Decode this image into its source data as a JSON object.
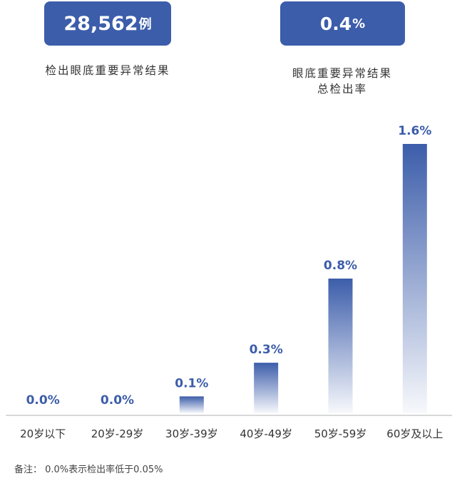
{
  "stats": {
    "left": {
      "value": "28,562",
      "unit": "例",
      "caption": "检出眼底重要异常结果"
    },
    "right": {
      "value": "0.4",
      "unit": "%",
      "caption_line1": "眼底重要异常结果",
      "caption_line2": "总检出率"
    }
  },
  "footnote": "备注： 0.0%表示检出率低于0.05%",
  "colors": {
    "accent": "#3c5daa",
    "baseline": "#cccccc"
  },
  "chart_data": {
    "type": "bar",
    "categories": [
      "20岁以下",
      "20岁-29岁",
      "30岁-39岁",
      "40岁-49岁",
      "50岁-59岁",
      "60岁及以上"
    ],
    "values": [
      0.0,
      0.0,
      0.1,
      0.3,
      0.8,
      1.6
    ],
    "value_labels": [
      "0.0%",
      "0.0%",
      "0.1%",
      "0.3%",
      "0.8%",
      "1.6%"
    ],
    "title": "",
    "xlabel": "",
    "ylabel": "",
    "ylim": [
      0,
      1.6
    ],
    "grid": false,
    "legend": "none"
  }
}
